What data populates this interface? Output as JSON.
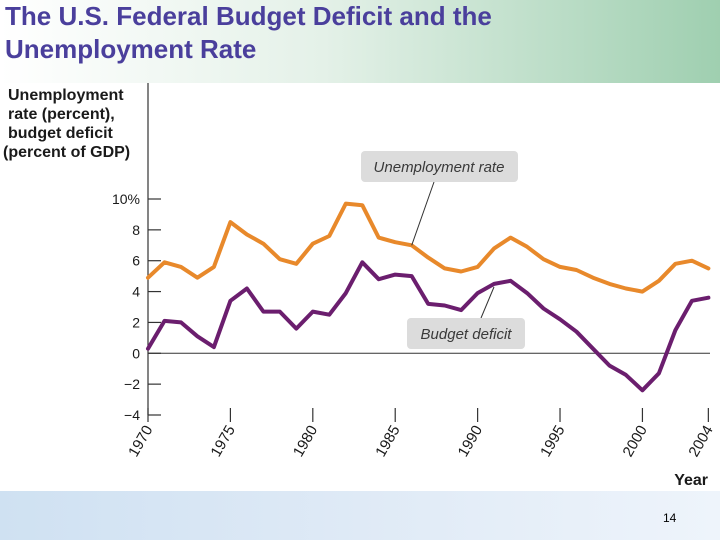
{
  "slide": {
    "title_line1": "The U.S. Federal Budget Deficit and the",
    "title_line2": "Unemployment Rate",
    "page_number": "14"
  },
  "colors": {
    "unemployment": "#e8892b",
    "deficit": "#6b1e6e",
    "callout_bg": "#dcdcdc",
    "axis": "#333333"
  },
  "chart_data": {
    "type": "line",
    "ylabel_lines": [
      "Unemployment",
      "rate (percent),",
      "budget deficit",
      "(percent of GDP)"
    ],
    "xlabel": "Year",
    "ylim": [
      -4,
      10
    ],
    "xlim": [
      1970,
      2004.1
    ],
    "y_ticks": [
      10,
      8,
      6,
      4,
      2,
      0,
      -2,
      -4
    ],
    "y_tick_labels": [
      "10%",
      "8",
      "6",
      "4",
      "2",
      "0",
      "−2",
      "−4"
    ],
    "x_ticks": [
      1970,
      1975,
      1980,
      1985,
      1990,
      1995,
      2000,
      2004
    ],
    "x_tick_labels": [
      "1970",
      "1975",
      "1980",
      "1985",
      "1990",
      "1995",
      "2000",
      "2004"
    ],
    "grid": false,
    "x": [
      1970,
      1971,
      1972,
      1973,
      1974,
      1975,
      1976,
      1977,
      1978,
      1979,
      1980,
      1981,
      1982,
      1983,
      1984,
      1985,
      1986,
      1987,
      1988,
      1989,
      1990,
      1991,
      1992,
      1993,
      1994,
      1995,
      1996,
      1997,
      1998,
      1999,
      2000,
      2001,
      2002,
      2003,
      2004
    ],
    "series": [
      {
        "name": "Unemployment rate",
        "values": [
          4.9,
          5.9,
          5.6,
          4.9,
          5.6,
          8.5,
          7.7,
          7.1,
          6.1,
          5.8,
          7.1,
          7.6,
          9.7,
          9.6,
          7.5,
          7.2,
          7.0,
          6.2,
          5.5,
          5.3,
          5.6,
          6.8,
          7.5,
          6.9,
          6.1,
          5.6,
          5.4,
          4.9,
          4.5,
          4.2,
          4.0,
          4.7,
          5.8,
          6.0,
          5.5
        ]
      },
      {
        "name": "Budget deficit",
        "values": [
          0.3,
          2.1,
          2.0,
          1.1,
          0.4,
          3.4,
          4.2,
          2.7,
          2.7,
          1.6,
          2.7,
          2.5,
          3.9,
          5.9,
          4.8,
          5.1,
          5.0,
          3.2,
          3.1,
          2.8,
          3.9,
          4.5,
          4.7,
          3.9,
          2.9,
          2.2,
          1.4,
          0.3,
          -0.8,
          -1.4,
          -2.4,
          -1.3,
          1.5,
          3.4,
          3.6
        ]
      }
    ]
  }
}
